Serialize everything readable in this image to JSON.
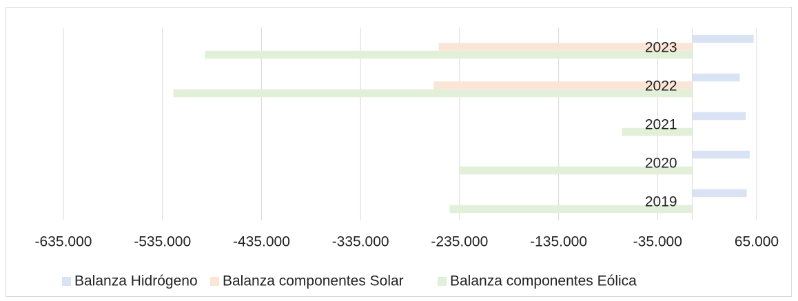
{
  "chart_data": {
    "type": "hbar",
    "categories": [
      "2019",
      "2020",
      "2021",
      "2022",
      "2023"
    ],
    "series": [
      {
        "name": "Balanza Hidrógeno",
        "color": "#dae3f3",
        "values": [
          55000,
          58000,
          54000,
          48000,
          62000
        ]
      },
      {
        "name": "Balanza componentes Solar",
        "color": "#fbe5d6",
        "values": [
          0,
          0,
          0,
          -261000,
          -256000
        ]
      },
      {
        "name": "Balanza componentes Eólica",
        "color": "#e2f0d9",
        "values": [
          -245000,
          -235000,
          -71000,
          -524000,
          -492000
        ]
      }
    ],
    "xlim": [
      -635000,
      65000
    ],
    "xticks": [
      {
        "value": -635000,
        "label": "-635.000"
      },
      {
        "value": -535000,
        "label": "-535.000"
      },
      {
        "value": -435000,
        "label": "-435.000"
      },
      {
        "value": -335000,
        "label": "-335.000"
      },
      {
        "value": -235000,
        "label": "-235.000"
      },
      {
        "value": -135000,
        "label": "-135.000"
      },
      {
        "value": -35000,
        "label": "-35.000"
      },
      {
        "value": 65000,
        "label": "65.000"
      }
    ],
    "grid": true,
    "legend": "bottom"
  }
}
